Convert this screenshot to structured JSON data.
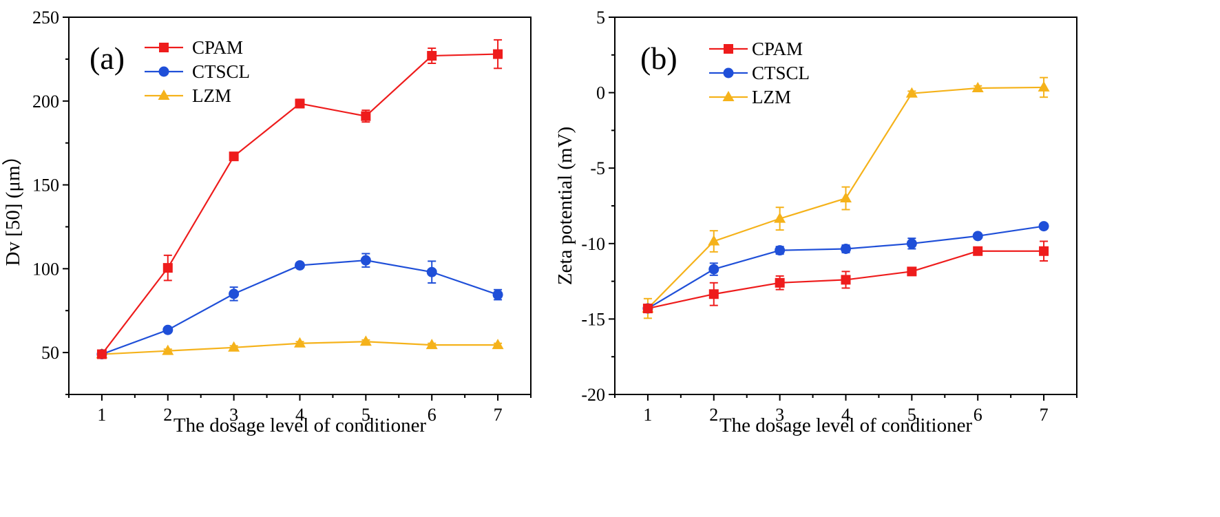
{
  "chart_data": [
    {
      "type": "line",
      "panel_label": "(a)",
      "xlabel": "The dosage level of conditioner",
      "ylabel": "Dv [50] (μm）",
      "x": [
        1,
        2,
        3,
        4,
        5,
        6,
        7
      ],
      "xlim": [
        0.5,
        7.5
      ],
      "ylim": [
        25,
        250
      ],
      "xticks": [
        "1",
        "2",
        "3",
        "4",
        "5",
        "6",
        "7"
      ],
      "yticks": [
        "50",
        "100",
        "150",
        "200",
        "250"
      ],
      "grid": false,
      "legend_position": "top-left",
      "series": [
        {
          "name": "CPAM",
          "color": "#ee1c1c",
          "marker": "square",
          "values": [
            49,
            100.5,
            167,
            198.5,
            191,
            227,
            228
          ],
          "errors": [
            2,
            7.5,
            1.5,
            2.5,
            3.5,
            4.5,
            8.5
          ]
        },
        {
          "name": "CTSCL",
          "color": "#1f4fd8",
          "marker": "circle",
          "values": [
            49,
            63.5,
            85,
            102,
            105,
            98,
            84.5
          ],
          "errors": [
            1.5,
            1,
            4,
            1.5,
            4,
            6.5,
            3
          ]
        },
        {
          "name": "LZM",
          "color": "#f5b21a",
          "marker": "triangle",
          "values": [
            49,
            51,
            53,
            55.5,
            56.5,
            54.5,
            54.5
          ],
          "errors": [
            1,
            1,
            1,
            1,
            1,
            1,
            1
          ]
        }
      ]
    },
    {
      "type": "line",
      "panel_label": "(b)",
      "xlabel": "The dosage level of conditioner",
      "ylabel": "Zeta potential (mV)",
      "x": [
        1,
        2,
        3,
        4,
        5,
        6,
        7
      ],
      "xlim": [
        0.5,
        7.5
      ],
      "ylim": [
        -20,
        5
      ],
      "xticks": [
        "1",
        "2",
        "3",
        "4",
        "5",
        "6",
        "7"
      ],
      "yticks": [
        "-20",
        "-15",
        "-10",
        "-5",
        "0",
        "5"
      ],
      "grid": false,
      "legend_position": "top-left",
      "series": [
        {
          "name": "CPAM",
          "color": "#ee1c1c",
          "marker": "square",
          "values": [
            -14.3,
            -13.35,
            -12.6,
            -12.4,
            -11.85,
            -10.5,
            -10.5
          ],
          "errors": [
            0.2,
            0.75,
            0.45,
            0.55,
            0.2,
            0.15,
            0.65
          ]
        },
        {
          "name": "CTSCL",
          "color": "#1f4fd8",
          "marker": "circle",
          "values": [
            -14.3,
            -11.7,
            -10.45,
            -10.35,
            -10.0,
            -9.5,
            -8.85
          ],
          "errors": [
            0.2,
            0.4,
            0.25,
            0.25,
            0.35,
            0.15,
            0.15
          ]
        },
        {
          "name": "LZM",
          "color": "#f5b21a",
          "marker": "triangle",
          "values": [
            -14.3,
            -9.85,
            -8.35,
            -7.0,
            -0.05,
            0.3,
            0.35
          ],
          "errors": [
            0.65,
            0.7,
            0.75,
            0.75,
            0.15,
            0.15,
            0.65
          ]
        }
      ]
    }
  ]
}
